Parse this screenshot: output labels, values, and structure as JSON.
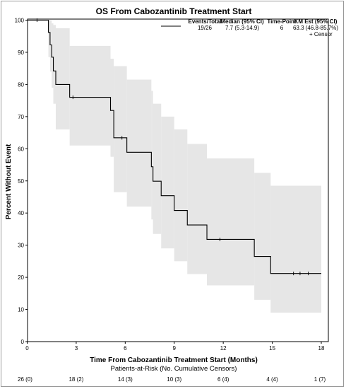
{
  "chart_data": {
    "type": "line",
    "title": "OS From Cabozantinib Treatment Start",
    "xlabel": "Time From Cabozantinib Treatment Start (Months)",
    "ylabel": "Percent Without Event",
    "xlim": [
      0,
      18
    ],
    "ylim": [
      0,
      100
    ],
    "x_ticks": [
      0,
      3,
      6,
      9,
      12,
      15,
      18
    ],
    "y_ticks": [
      0,
      10,
      20,
      30,
      40,
      50,
      60,
      70,
      80,
      90,
      100
    ],
    "grid": false,
    "series": [
      {
        "type": "step",
        "color": "#000000",
        "band_color": "#e6e6e6",
        "steps": [
          {
            "x": 0,
            "y": 100,
            "lower": 100,
            "upper": 100
          },
          {
            "x": 1.3,
            "y": 96.2,
            "lower": 88.5,
            "upper": 100
          },
          {
            "x": 1.4,
            "y": 92.3,
            "lower": 84,
            "upper": 100
          },
          {
            "x": 1.5,
            "y": 88.5,
            "lower": 79,
            "upper": 99
          },
          {
            "x": 1.6,
            "y": 84.2,
            "lower": 74,
            "upper": 98.5
          },
          {
            "x": 1.75,
            "y": 80,
            "lower": 66,
            "upper": 97.5
          },
          {
            "x": 2.6,
            "y": 76,
            "lower": 61,
            "upper": 92
          },
          {
            "x": 5.1,
            "y": 71.9,
            "lower": 57.5,
            "upper": 88
          },
          {
            "x": 5.3,
            "y": 63.4,
            "lower": 46.5,
            "upper": 85.7
          },
          {
            "x": 6.1,
            "y": 58.9,
            "lower": 42,
            "upper": 81.5
          },
          {
            "x": 7.6,
            "y": 54.4,
            "lower": 38,
            "upper": 78
          },
          {
            "x": 7.7,
            "y": 49.9,
            "lower": 33.5,
            "upper": 74
          },
          {
            "x": 8.2,
            "y": 45.4,
            "lower": 29,
            "upper": 70
          },
          {
            "x": 9,
            "y": 40.8,
            "lower": 25,
            "upper": 66
          },
          {
            "x": 9.8,
            "y": 36.3,
            "lower": 21,
            "upper": 61.5
          },
          {
            "x": 11,
            "y": 31.8,
            "lower": 17.5,
            "upper": 57
          },
          {
            "x": 13.9,
            "y": 26.5,
            "lower": 13,
            "upper": 52.5
          },
          {
            "x": 14.9,
            "y": 21.2,
            "lower": 9,
            "upper": 48.5
          },
          {
            "x": 18,
            "y": 21.2,
            "lower": 9,
            "upper": 48.5
          }
        ],
        "censors": [
          {
            "x": 0.6,
            "y": 100
          },
          {
            "x": 2.8,
            "y": 76
          },
          {
            "x": 5.8,
            "y": 63.4
          },
          {
            "x": 11.8,
            "y": 31.8
          },
          {
            "x": 16.3,
            "y": 21.2
          },
          {
            "x": 16.7,
            "y": 21.2
          },
          {
            "x": 17.2,
            "y": 21.2
          }
        ]
      }
    ],
    "legend": {
      "position": "top-right",
      "headers": [
        "Events/Total",
        "Median (95% CI)",
        "Time-Point",
        "KM Est (95% CI)"
      ],
      "row": [
        "19/26",
        "7.7 (5.3-14.9)",
        "6",
        "63.3 (46.8-85.7%)"
      ],
      "censor_label": "+ Censor"
    },
    "at_risk": {
      "title": "Patients-at-Risk (No. Cumulative Censors)",
      "times": [
        0,
        3,
        6,
        9,
        12,
        15,
        18
      ],
      "labels": [
        "26 (0)",
        "18 (2)",
        "14 (3)",
        "10 (3)",
        "6 (4)",
        "4 (4)",
        "1 (7)"
      ]
    }
  }
}
